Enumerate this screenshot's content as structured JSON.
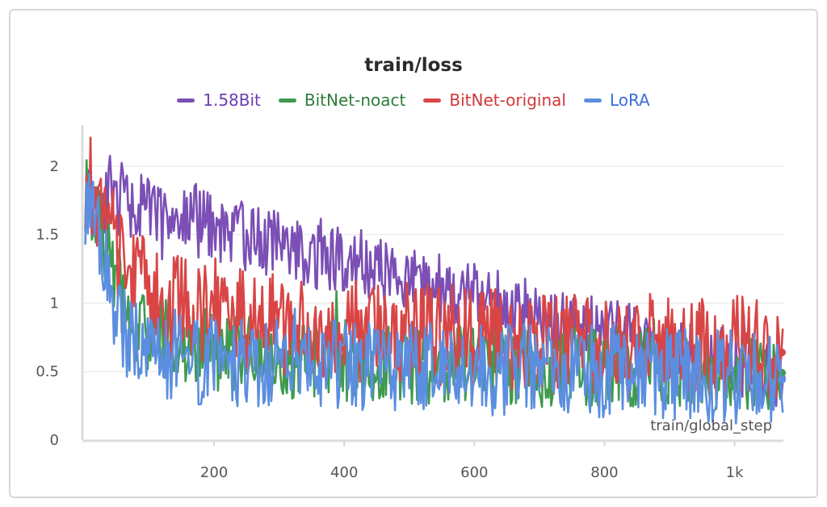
{
  "chart_data": {
    "type": "line",
    "title": "train/loss",
    "xlabel": "train/global_step",
    "ylabel": "",
    "xlim": [
      0,
      1075
    ],
    "ylim": [
      0,
      2.3
    ],
    "x_ticks": [
      {
        "value": 200,
        "label": "200"
      },
      {
        "value": 400,
        "label": "400"
      },
      {
        "value": 600,
        "label": "600"
      },
      {
        "value": 800,
        "label": "800"
      },
      {
        "value": 1000,
        "label": "1k"
      }
    ],
    "y_ticks": [
      {
        "value": 0,
        "label": "0"
      },
      {
        "value": 0.5,
        "label": "0.5"
      },
      {
        "value": 1,
        "label": "1"
      },
      {
        "value": 1.5,
        "label": "1.5"
      },
      {
        "value": 2,
        "label": "2"
      }
    ],
    "grid": true,
    "legend_position": "top-center",
    "series": [
      {
        "name": "1.58Bit",
        "color": "#7b4fb5",
        "legend_color": "#6a3fb0",
        "x": [
          0,
          1075
        ],
        "values": [
          1.8,
          0.45
        ]
      },
      {
        "name": "BitNet-noact",
        "color": "#3f9a4e",
        "legend_color": "#2f7d3a",
        "x": [
          0,
          15,
          30,
          50,
          75,
          100,
          150,
          200,
          300,
          400,
          500,
          600,
          700,
          800,
          900,
          1000,
          1075
        ],
        "values": [
          1.85,
          1.65,
          1.45,
          1.15,
          0.9,
          0.78,
          0.72,
          0.66,
          0.6,
          0.58,
          0.56,
          0.55,
          0.54,
          0.53,
          0.52,
          0.51,
          0.49
        ]
      },
      {
        "name": "BitNet-original",
        "color": "#d94545",
        "legend_color": "#d03838",
        "x": [
          0,
          15,
          30,
          50,
          75,
          100,
          150,
          200,
          300,
          400,
          500,
          600,
          700,
          800,
          900,
          1000,
          1075
        ],
        "values": [
          1.95,
          1.85,
          1.65,
          1.4,
          1.2,
          1.08,
          0.98,
          0.92,
          0.84,
          0.8,
          0.78,
          0.75,
          0.72,
          0.7,
          0.69,
          0.68,
          0.64
        ]
      },
      {
        "name": "LoRA",
        "color": "#5b8ee0",
        "legend_color": "#3a6fd8",
        "x": [
          0,
          15,
          30,
          50,
          75,
          100,
          150,
          200,
          300,
          400,
          500,
          600,
          700,
          800,
          900,
          1000,
          1075
        ],
        "values": [
          1.8,
          1.55,
          1.3,
          0.95,
          0.72,
          0.65,
          0.62,
          0.58,
          0.56,
          0.55,
          0.54,
          0.52,
          0.51,
          0.5,
          0.48,
          0.46,
          0.44
        ]
      }
    ]
  }
}
